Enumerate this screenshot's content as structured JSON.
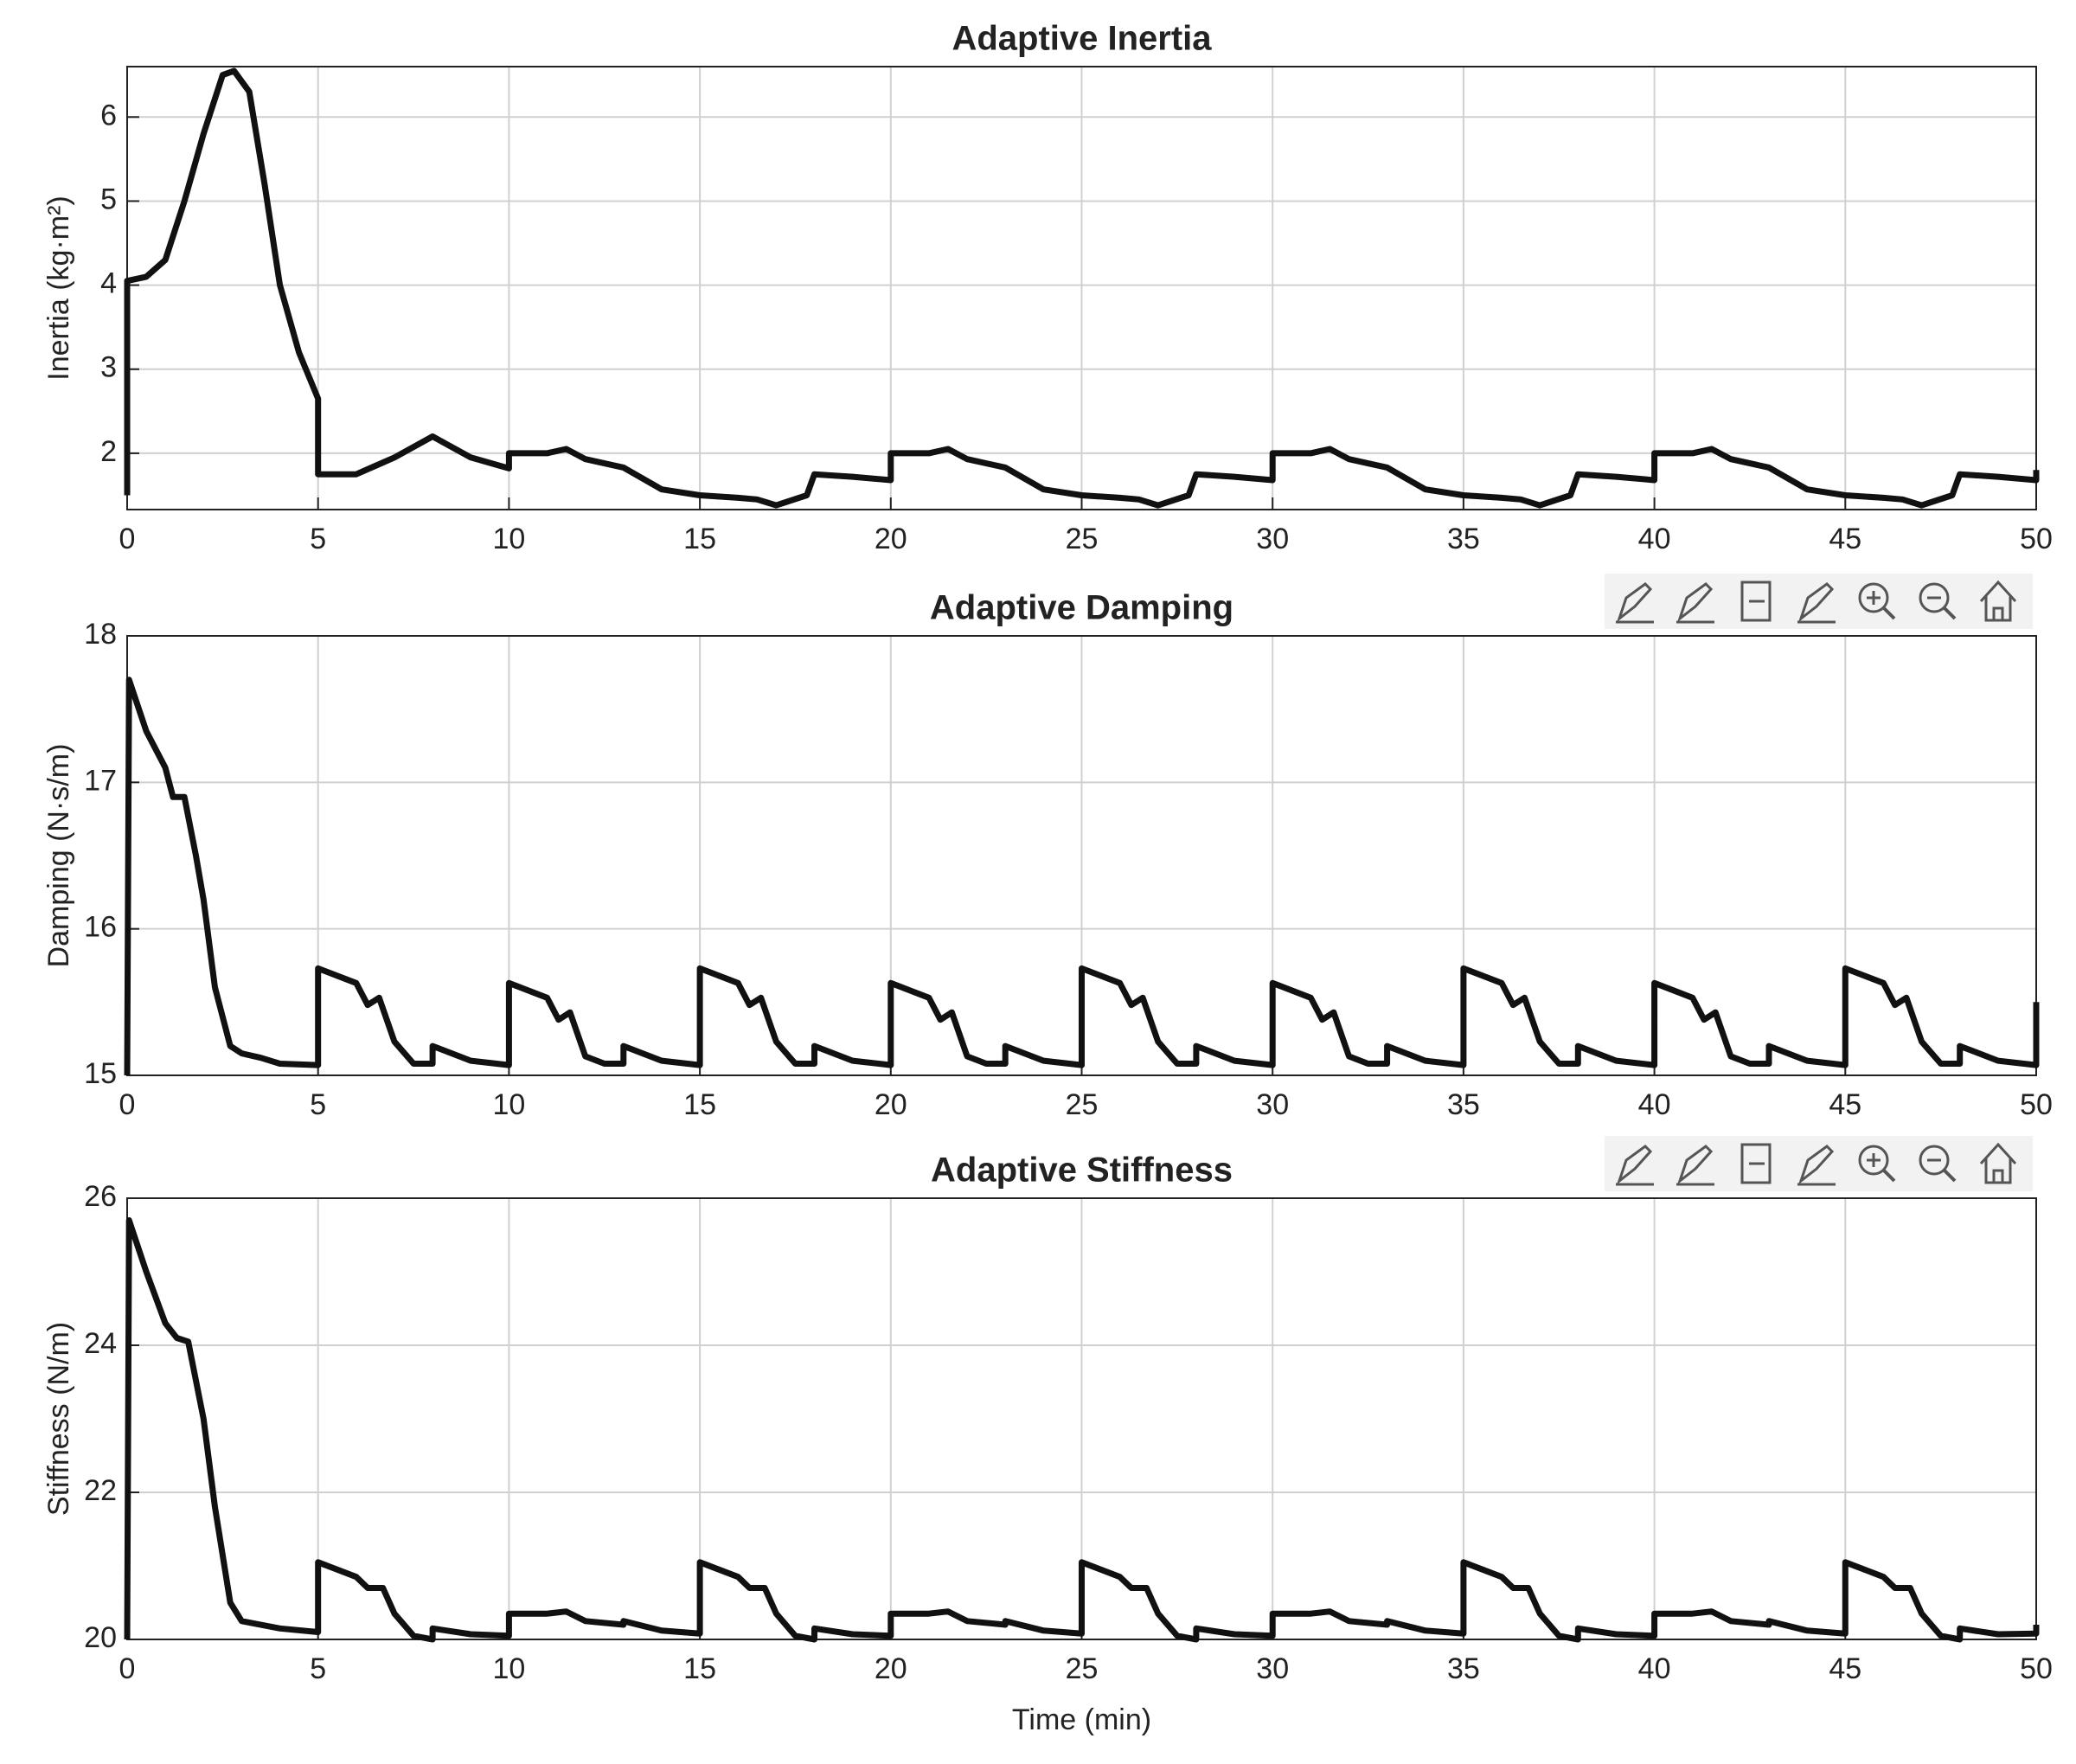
{
  "chart_data": [
    {
      "type": "line",
      "title": "Adaptive Inertia",
      "ylabel": "Inertia (kg·m²)",
      "color": "#111111",
      "grid": true,
      "xlim": [
        0,
        50
      ],
      "xticks": [
        0,
        5,
        10,
        15,
        20,
        25,
        30,
        35,
        40,
        45,
        50
      ],
      "ylim": [
        1.33,
        6.6
      ],
      "yticks": [
        2,
        3,
        4,
        5,
        6
      ],
      "x": [
        0,
        0,
        0.5,
        1,
        1.5,
        2,
        2.5,
        2.8,
        3.2,
        3.6,
        4,
        4.5,
        5,
        5,
        6,
        6.5,
        7,
        8,
        9,
        10,
        10,
        11,
        11.5,
        12,
        13,
        14,
        15,
        16,
        16.5,
        17,
        17.8,
        18,
        19,
        20,
        20,
        21,
        21.5,
        22,
        23,
        24,
        25,
        26,
        26.5,
        27,
        27.8,
        28,
        29,
        30,
        30,
        31,
        31.5,
        32,
        33,
        34,
        35,
        36,
        36.5,
        37,
        37.8,
        38,
        39,
        40,
        40,
        41,
        41.5,
        42,
        43,
        44,
        45,
        46,
        46.5,
        47,
        47.8,
        48,
        49,
        50,
        50
      ],
      "values": [
        1.5,
        4.05,
        4.1,
        4.3,
        5.0,
        5.8,
        6.5,
        6.55,
        6.3,
        5.2,
        4.0,
        3.2,
        2.65,
        1.75,
        1.75,
        1.85,
        1.95,
        2.2,
        1.95,
        1.82,
        2.0,
        2.0,
        2.05,
        1.93,
        1.83,
        1.57,
        1.5,
        1.47,
        1.45,
        1.38,
        1.5,
        1.75,
        1.72,
        1.68,
        2.0,
        2.0,
        2.05,
        1.93,
        1.83,
        1.57,
        1.5,
        1.47,
        1.45,
        1.38,
        1.5,
        1.75,
        1.72,
        1.68,
        2.0,
        2.0,
        2.05,
        1.93,
        1.83,
        1.57,
        1.5,
        1.47,
        1.45,
        1.38,
        1.5,
        1.75,
        1.72,
        1.68,
        2.0,
        2.0,
        2.05,
        1.93,
        1.83,
        1.57,
        1.5,
        1.47,
        1.45,
        1.38,
        1.5,
        1.75,
        1.72,
        1.68,
        1.8
      ]
    },
    {
      "type": "line",
      "title": "Adaptive Damping",
      "ylabel": "Damping (N·s/m)",
      "color": "#111111",
      "grid": true,
      "xlim": [
        0,
        50
      ],
      "xticks": [
        0,
        5,
        10,
        15,
        20,
        25,
        30,
        35,
        40,
        45,
        50
      ],
      "ylim": [
        15,
        18
      ],
      "yticks": [
        15,
        16,
        17,
        18
      ],
      "x": [
        0,
        0.05,
        0.5,
        1,
        1.2,
        1.5,
        1.8,
        2,
        2.3,
        2.7,
        3,
        3.5,
        4,
        5,
        5,
        6,
        6.3,
        6.6,
        7,
        7.5,
        8,
        8,
        9,
        10,
        10,
        11,
        11.3,
        11.6,
        12,
        12.5,
        13,
        13,
        14,
        15,
        15,
        16,
        16.3,
        16.6,
        17,
        17.5,
        18,
        18,
        19,
        20,
        20,
        21,
        21.3,
        21.6,
        22,
        22.5,
        23,
        23,
        24,
        25,
        25,
        26,
        26.3,
        26.6,
        27,
        27.5,
        28,
        28,
        29,
        30,
        30,
        31,
        31.3,
        31.6,
        32,
        32.5,
        33,
        33,
        34,
        35,
        35,
        36,
        36.3,
        36.6,
        37,
        37.5,
        38,
        38,
        39,
        40,
        40,
        41,
        41.3,
        41.6,
        42,
        42.5,
        43,
        43,
        44,
        45,
        45,
        46,
        46.3,
        46.6,
        47,
        47.5,
        48,
        48,
        49,
        50,
        50
      ],
      "values": [
        15,
        17.7,
        17.35,
        17.1,
        16.9,
        16.9,
        16.5,
        16.2,
        15.6,
        15.2,
        15.15,
        15.12,
        15.08,
        15.07,
        15.73,
        15.63,
        15.48,
        15.53,
        15.23,
        15.08,
        15.08,
        15.2,
        15.1,
        15.07,
        15.63,
        15.53,
        15.38,
        15.43,
        15.13,
        15.08,
        15.08,
        15.2,
        15.1,
        15.07,
        15.73,
        15.63,
        15.48,
        15.53,
        15.23,
        15.08,
        15.08,
        15.2,
        15.1,
        15.07,
        15.63,
        15.53,
        15.38,
        15.43,
        15.13,
        15.08,
        15.08,
        15.2,
        15.1,
        15.07,
        15.73,
        15.63,
        15.48,
        15.53,
        15.23,
        15.08,
        15.08,
        15.2,
        15.1,
        15.07,
        15.63,
        15.53,
        15.38,
        15.43,
        15.13,
        15.08,
        15.08,
        15.2,
        15.1,
        15.07,
        15.73,
        15.63,
        15.48,
        15.53,
        15.23,
        15.08,
        15.08,
        15.2,
        15.1,
        15.07,
        15.63,
        15.53,
        15.38,
        15.43,
        15.13,
        15.08,
        15.08,
        15.2,
        15.1,
        15.07,
        15.73,
        15.63,
        15.48,
        15.53,
        15.23,
        15.08,
        15.08,
        15.2,
        15.1,
        15.07,
        15.5
      ]
    },
    {
      "type": "line",
      "title": "Adaptive Stiffness",
      "ylabel": "Stiffness (N/m)",
      "xlabel": "Time (min)",
      "color": "#111111",
      "grid": true,
      "xlim": [
        0,
        50
      ],
      "xticks": [
        0,
        5,
        10,
        15,
        20,
        25,
        30,
        35,
        40,
        45,
        50
      ],
      "ylim": [
        20,
        26
      ],
      "yticks": [
        20,
        22,
        24,
        26
      ],
      "x": [
        0,
        0.05,
        0.5,
        1,
        1.3,
        1.6,
        2,
        2.3,
        2.7,
        3,
        4,
        5,
        5,
        6,
        6.3,
        6.7,
        7,
        7.5,
        8,
        8,
        9,
        10,
        10,
        11,
        11.5,
        12,
        13,
        13,
        14,
        15,
        15,
        16,
        16.3,
        16.7,
        17,
        17.5,
        18,
        18,
        19,
        20,
        20,
        21,
        21.5,
        22,
        23,
        23,
        24,
        25,
        25,
        26,
        26.3,
        26.7,
        27,
        27.5,
        28,
        28,
        29,
        30,
        30,
        31,
        31.5,
        32,
        33,
        33,
        34,
        35,
        35,
        36,
        36.3,
        36.7,
        37,
        37.5,
        38,
        38,
        39,
        40,
        40,
        41,
        41.5,
        42,
        43,
        43,
        44,
        45,
        45,
        46,
        46.3,
        46.7,
        47,
        47.5,
        48,
        48,
        49,
        50,
        50
      ],
      "values": [
        20,
        25.7,
        25.0,
        24.3,
        24.1,
        24.05,
        23.0,
        21.8,
        20.5,
        20.25,
        20.15,
        20.1,
        21.05,
        20.85,
        20.7,
        20.7,
        20.35,
        20.05,
        20.0,
        20.15,
        20.07,
        20.05,
        20.35,
        20.35,
        20.38,
        20.25,
        20.2,
        20.25,
        20.12,
        20.08,
        21.05,
        20.85,
        20.7,
        20.7,
        20.35,
        20.05,
        20.0,
        20.15,
        20.07,
        20.05,
        20.35,
        20.35,
        20.38,
        20.25,
        20.2,
        20.25,
        20.12,
        20.08,
        21.05,
        20.85,
        20.7,
        20.7,
        20.35,
        20.05,
        20.0,
        20.15,
        20.07,
        20.05,
        20.35,
        20.35,
        20.38,
        20.25,
        20.2,
        20.25,
        20.12,
        20.08,
        21.05,
        20.85,
        20.7,
        20.7,
        20.35,
        20.05,
        20.0,
        20.15,
        20.07,
        20.05,
        20.35,
        20.35,
        20.38,
        20.25,
        20.2,
        20.25,
        20.12,
        20.08,
        21.05,
        20.85,
        20.7,
        20.7,
        20.35,
        20.05,
        20.0,
        20.15,
        20.07,
        20.08,
        20.2
      ]
    }
  ]
}
